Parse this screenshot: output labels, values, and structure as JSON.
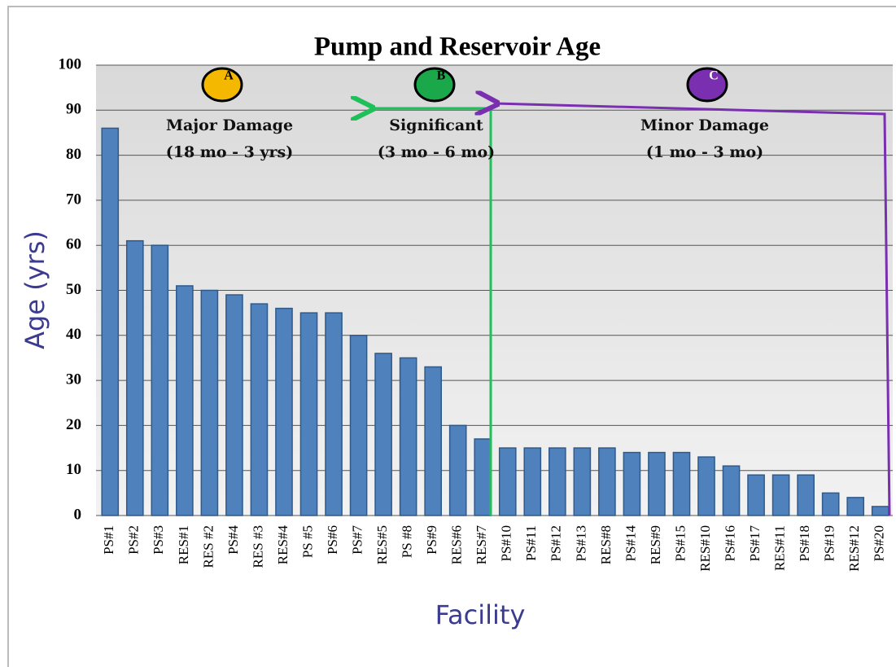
{
  "chart_data": {
    "type": "bar",
    "title": "Pump and Reservoir  Age",
    "x_label": "Facility",
    "y_label": "Age (yrs)",
    "categories": [
      "PS#1",
      "PS#2",
      "PS#3",
      "RES#1",
      "RES #2",
      "PS#4",
      "RES #3",
      "RES#4",
      "PS #5",
      "PS#6",
      "PS#7",
      "RES#5",
      "PS #8",
      "PS#9",
      "RES#6",
      "RES#7",
      "PS#10",
      "PS#11",
      "PS#12",
      "PS#13",
      "RES#8",
      "PS#14",
      "RES#9",
      "PS#15",
      "RES#10",
      "PS#16",
      "PS#17",
      "RES#11",
      "PS#18",
      "PS#19",
      "RES#12",
      "PS#20"
    ],
    "values": [
      86,
      61,
      60,
      51,
      50,
      49,
      47,
      46,
      45,
      45,
      40,
      36,
      35,
      33,
      20,
      17,
      15,
      15,
      15,
      15,
      15,
      14,
      14,
      14,
      13,
      11,
      9,
      9,
      9,
      5,
      4,
      2
    ],
    "color": "#4f81bd",
    "ylim": [
      0,
      100
    ],
    "yticks": [
      0,
      10,
      20,
      30,
      40,
      50,
      60,
      70,
      80,
      90,
      100
    ],
    "grid": true,
    "annotations": [
      {
        "letter": "A",
        "color": "#f5b800",
        "lines": [
          "Major Damage",
          "(18 mo - 3 yrs)"
        ]
      },
      {
        "letter": "B",
        "color": "#1aa84a",
        "lines": [
          "Significant",
          "(3 mo - 6 mo)"
        ]
      },
      {
        "letter": "C",
        "color": "#7a2fb0",
        "lines": [
          "Minor  Damage",
          "(1 mo - 3 mo)"
        ]
      }
    ]
  }
}
